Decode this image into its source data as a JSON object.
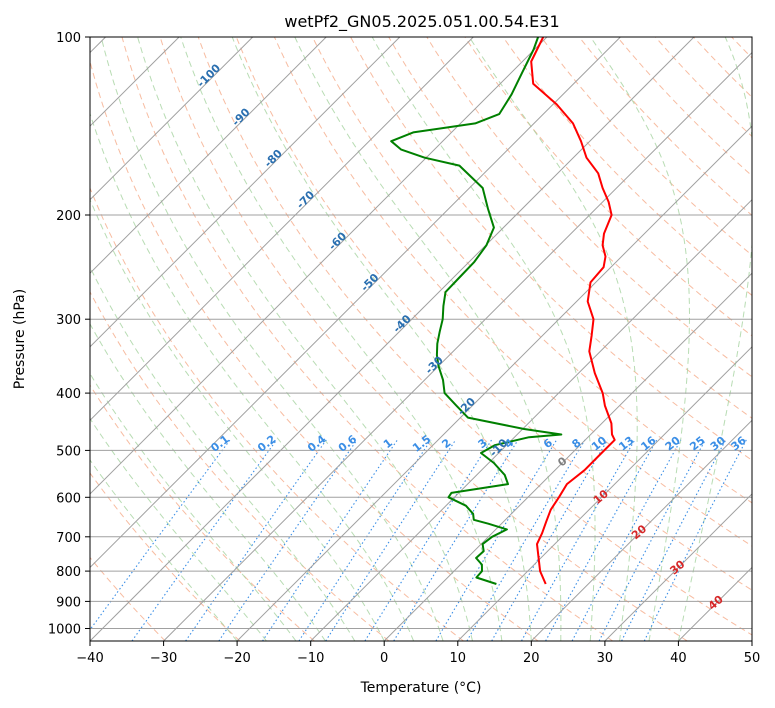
{
  "chart_data": {
    "type": "line",
    "title": "wetPf2_GN05.2025.051.00.54.E31",
    "xlabel": "Temperature (°C)",
    "ylabel": "Pressure (hPa)",
    "xlim": [
      -40,
      50
    ],
    "ylim": [
      1050,
      100
    ],
    "y_scale": "log",
    "x_ticks": [
      -40,
      -30,
      -20,
      -10,
      0,
      10,
      20,
      30,
      40,
      50
    ],
    "x_tick_labels": [
      "−40",
      "−30",
      "−20",
      "−10",
      "0",
      "10",
      "20",
      "30",
      "40",
      "50"
    ],
    "y_ticks": [
      100,
      200,
      300,
      400,
      500,
      600,
      700,
      800,
      900,
      1000
    ],
    "y_tick_labels": [
      "100",
      "200",
      "300",
      "400",
      "500",
      "600",
      "700",
      "800",
      "900",
      "1000"
    ],
    "grid": true,
    "skew": 45,
    "colors": {
      "temperature": "#ff0000",
      "dewpoint": "#008000",
      "isotherm": "#a0a0a0",
      "dry_adiabat": "#f4a582",
      "moist_adiabat": "#a6d3a0",
      "mixing_ratio": "#3a8ee6",
      "isotherm_label": "#2a6fb0",
      "dry_adiabat_label": "#d62728",
      "mixing_ratio_label": "#3a8ee6",
      "zero_label": "#808080"
    },
    "series": [
      {
        "pressure": [
          841,
          800,
          760,
          720,
          690,
          660,
          630,
          600,
          570,
          540,
          510,
          480,
          470,
          450,
          420,
          400,
          370,
          340,
          320,
          300,
          280,
          260,
          245,
          235,
          225,
          215,
          200,
          190,
          180,
          170,
          160,
          150,
          140,
          130,
          120,
          110,
          100
        ],
        "values": [
          14.2,
          11.7,
          9.7,
          7.6,
          6.8,
          5.8,
          4.8,
          4.2,
          3.5,
          4.0,
          4.0,
          4.0,
          2.9,
          1.3,
          -2.0,
          -4.0,
          -7.8,
          -11.5,
          -13.3,
          -15.3,
          -18.5,
          -20.7,
          -21.0,
          -22.2,
          -24.1,
          -25.5,
          -27.0,
          -29.2,
          -31.9,
          -34.5,
          -38.2,
          -41.2,
          -44.7,
          -49.5,
          -55.5,
          -58.8,
          -60.5
        ]
      },
      {
        "pressure": [
          841,
          820,
          800,
          780,
          760,
          740,
          720,
          700,
          680,
          665,
          655,
          640,
          620,
          600,
          590,
          570,
          550,
          525,
          505,
          490,
          475,
          470,
          460,
          440,
          420,
          400,
          380,
          360,
          345,
          330,
          315,
          300,
          285,
          270,
          255,
          240,
          225,
          210,
          195,
          180,
          165,
          160,
          155,
          150,
          145,
          140,
          135,
          125,
          115,
          105,
          100
        ],
        "values": [
          7.5,
          3.9,
          3.8,
          2.9,
          1.2,
          1.3,
          0.2,
          0.5,
          1.5,
          -1.8,
          -4.3,
          -5.2,
          -7.3,
          -10.8,
          -11.0,
          -4.5,
          -6.2,
          -9.3,
          -12.4,
          -11.6,
          -8.0,
          -4.0,
          -9.8,
          -19.0,
          -22.2,
          -25.5,
          -27.5,
          -30.0,
          -31.7,
          -33.2,
          -34.5,
          -35.8,
          -37.5,
          -39.1,
          -39.2,
          -39.3,
          -39.9,
          -41.3,
          -44.7,
          -48.2,
          -54.4,
          -60.2,
          -64.5,
          -67.0,
          -65.2,
          -58.0,
          -56.0,
          -57.0,
          -58.5,
          -60.1,
          -61.2
        ]
      }
    ],
    "mixing_ratio_labels": [
      "0.1",
      "0.2",
      "0.4",
      "0.6",
      "1",
      "1.5",
      "2",
      "3",
      "4",
      "6",
      "8",
      "10",
      "13",
      "16",
      "20",
      "25",
      "30",
      "36"
    ],
    "isotherm_labels": [
      "-100",
      "-90",
      "-80",
      "-70",
      "-60",
      "-50",
      "-40",
      "-30",
      "-20",
      "-10"
    ],
    "dry_adiabat_labels": [
      "0",
      "10",
      "20",
      "30",
      "40"
    ]
  }
}
